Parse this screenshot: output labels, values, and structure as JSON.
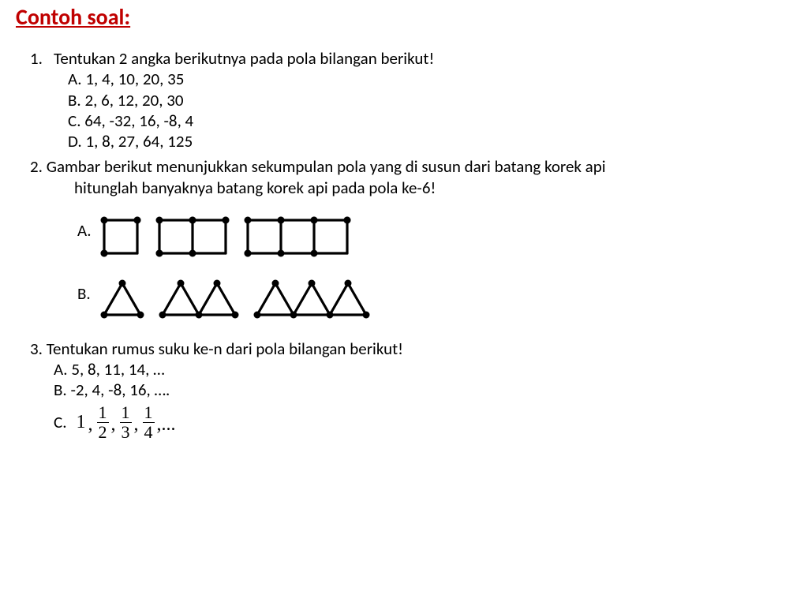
{
  "title": "Contoh soal:",
  "q1": {
    "number": "1.",
    "stem": "Tentukan 2 angka berikutnya pada pola bilangan berikut!",
    "A": "A.  1, 4, 10, 20, 35",
    "B": "B.  2, 6, 12, 20, 30",
    "C": "C.  64, -32, 16, -8, 4",
    "D": "D.  1, 8, 27, 64, 125"
  },
  "q2": {
    "line1": "2. Gambar berikut menunjukkan sekumpulan pola yang di susun dari batang korek api",
    "line2": "hitunglah banyaknya batang korek api pada pola ke-6!",
    "labelA": "A.",
    "labelB": "B."
  },
  "q3": {
    "line1": "3. Tentukan rumus suku ke-n dari pola bilangan berikut!",
    "A": "A. 5, 8, 11, 14, …",
    "B": "B. -2, 4, -8, 16, ….",
    "Clabel": "C.",
    "seq": {
      "first": "1",
      "f1n": "1",
      "f1d": "2",
      "f2n": "1",
      "f2d": "3",
      "f3n": "1",
      "f3d": "4",
      "dots": ",..."
    }
  },
  "svgA": {
    "stroke": "#000000",
    "stroke_width": 3.2,
    "dot_r": 4.5,
    "cell": 42,
    "gap": 28,
    "top_offset": 0
  },
  "svgB": {
    "stroke": "#000000",
    "stroke_width": 3.2,
    "dot_r": 4.5,
    "base": 46,
    "height": 40,
    "gap": 28
  }
}
